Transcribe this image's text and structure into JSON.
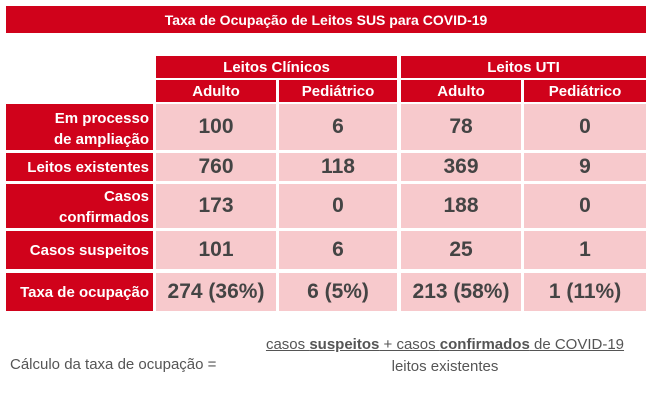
{
  "title": "Taxa de Ocupação de Leitos SUS para COVID-19",
  "groups": [
    "Leitos Clínicos",
    "Leitos UTI"
  ],
  "subheaders": [
    "Adulto",
    "Pediátrico",
    "Adulto",
    "Pediátrico"
  ],
  "rows": [
    {
      "label_line1": "Em processo",
      "label_line2": "de ampliação",
      "values": [
        "100",
        "6",
        "78",
        "0"
      ]
    },
    {
      "label_line1": "Leitos existentes",
      "label_line2": "",
      "values": [
        "760",
        "118",
        "369",
        "9"
      ]
    },
    {
      "label_line1": "Casos",
      "label_line2": "confirmados",
      "values": [
        "173",
        "0",
        "188",
        "0"
      ]
    },
    {
      "label_line1": "Casos suspeitos",
      "label_line2": "",
      "values": [
        "101",
        "6",
        "25",
        "1"
      ]
    },
    {
      "label_line1": "Taxa de ocupação",
      "label_line2": "",
      "values": [
        "274 (36%)",
        "6 (5%)",
        "213 (58%)",
        "1 (11%)"
      ]
    }
  ],
  "formula": {
    "prefix": "Cálculo da taxa de ocupação =",
    "num_part1": "casos ",
    "num_bold1": "suspeitos",
    "num_part2": " + casos ",
    "num_bold2": "confirmados",
    "num_part3": " de COVID-19",
    "denominator": "leitos existentes"
  }
}
